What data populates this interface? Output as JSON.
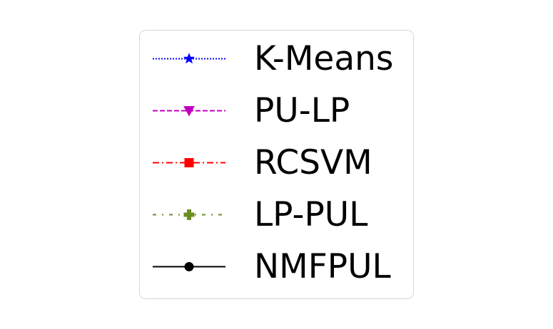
{
  "chart_data": {
    "type": "line",
    "title": "",
    "xlabel": "",
    "ylabel": "",
    "legend_placement": "center",
    "series": [
      {
        "name": "K-Means",
        "color": "#0000ff",
        "linestyle": "dotted",
        "marker": "star"
      },
      {
        "name": "PU-LP",
        "color": "#c000c0",
        "linestyle": "dashed",
        "marker": "triangle-down"
      },
      {
        "name": "RCSVM",
        "color": "#ff0000",
        "linestyle": "dashdot",
        "marker": "square"
      },
      {
        "name": "LP-PUL",
        "color": "#6b8e23",
        "linestyle": "loose-dashdot",
        "marker": "plus-filled"
      },
      {
        "name": "NMFPUL",
        "color": "#000000",
        "linestyle": "solid",
        "marker": "circle"
      }
    ]
  }
}
